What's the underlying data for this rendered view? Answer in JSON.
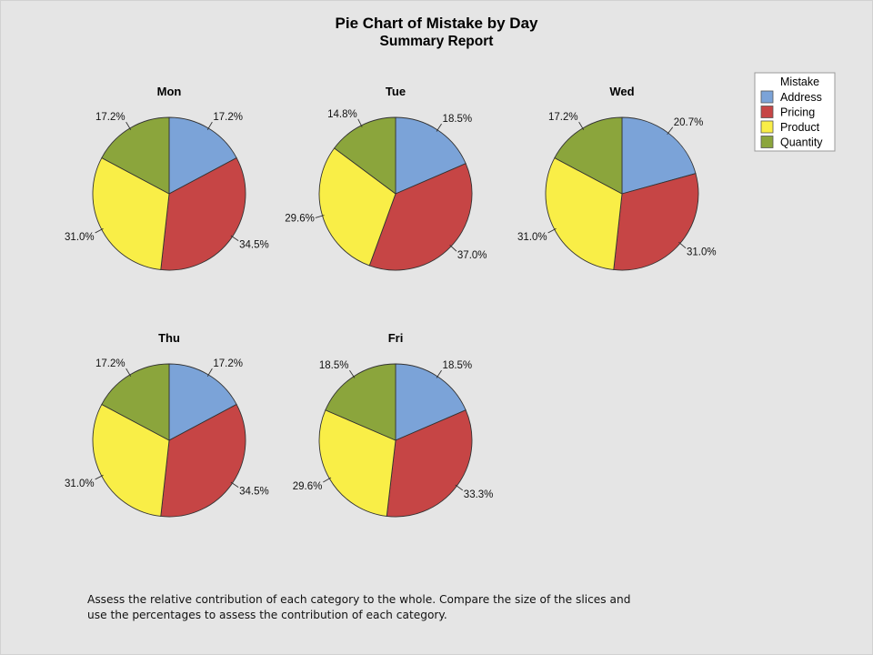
{
  "chart_data": {
    "type": "pie",
    "title": "Pie Chart of Mistake by Day",
    "subtitle": "Summary Report",
    "legend": {
      "title": "Mistake",
      "position": "top-right",
      "entries": [
        {
          "name": "Address",
          "color": "#7ba3d8"
        },
        {
          "name": "Pricing",
          "color": "#c64545"
        },
        {
          "name": "Product",
          "color": "#f9ee47"
        },
        {
          "name": "Quantity",
          "color": "#8ba53c"
        }
      ]
    },
    "categories": [
      "Address",
      "Pricing",
      "Product",
      "Quantity"
    ],
    "colors": [
      "#7ba3d8",
      "#c64545",
      "#f9ee47",
      "#8ba53c"
    ],
    "pies": [
      {
        "name": "Mon",
        "values": [
          17.2,
          34.5,
          31.0,
          17.2
        ],
        "labels": [
          "17.2%",
          "34.5%",
          "31.0%",
          "17.2%"
        ]
      },
      {
        "name": "Tue",
        "values": [
          18.5,
          37.0,
          29.6,
          14.8
        ],
        "labels": [
          "18.5%",
          "37.0%",
          "29.6%",
          "14.8%"
        ]
      },
      {
        "name": "Wed",
        "values": [
          20.7,
          31.0,
          31.0,
          17.2
        ],
        "labels": [
          "20.7%",
          "31.0%",
          "31.0%",
          "17.2%"
        ]
      },
      {
        "name": "Thu",
        "values": [
          17.2,
          34.5,
          31.0,
          17.2
        ],
        "labels": [
          "17.2%",
          "34.5%",
          "31.0%",
          "17.2%"
        ]
      },
      {
        "name": "Fri",
        "values": [
          18.5,
          33.3,
          29.6,
          18.5
        ],
        "labels": [
          "18.5%",
          "33.3%",
          "29.6%",
          "18.5%"
        ]
      }
    ]
  },
  "footer": {
    "line1": "Assess the relative contribution of each category to the whole. Compare the size of the slices and",
    "line2": "use the percentages to assess the contribution of each category."
  }
}
